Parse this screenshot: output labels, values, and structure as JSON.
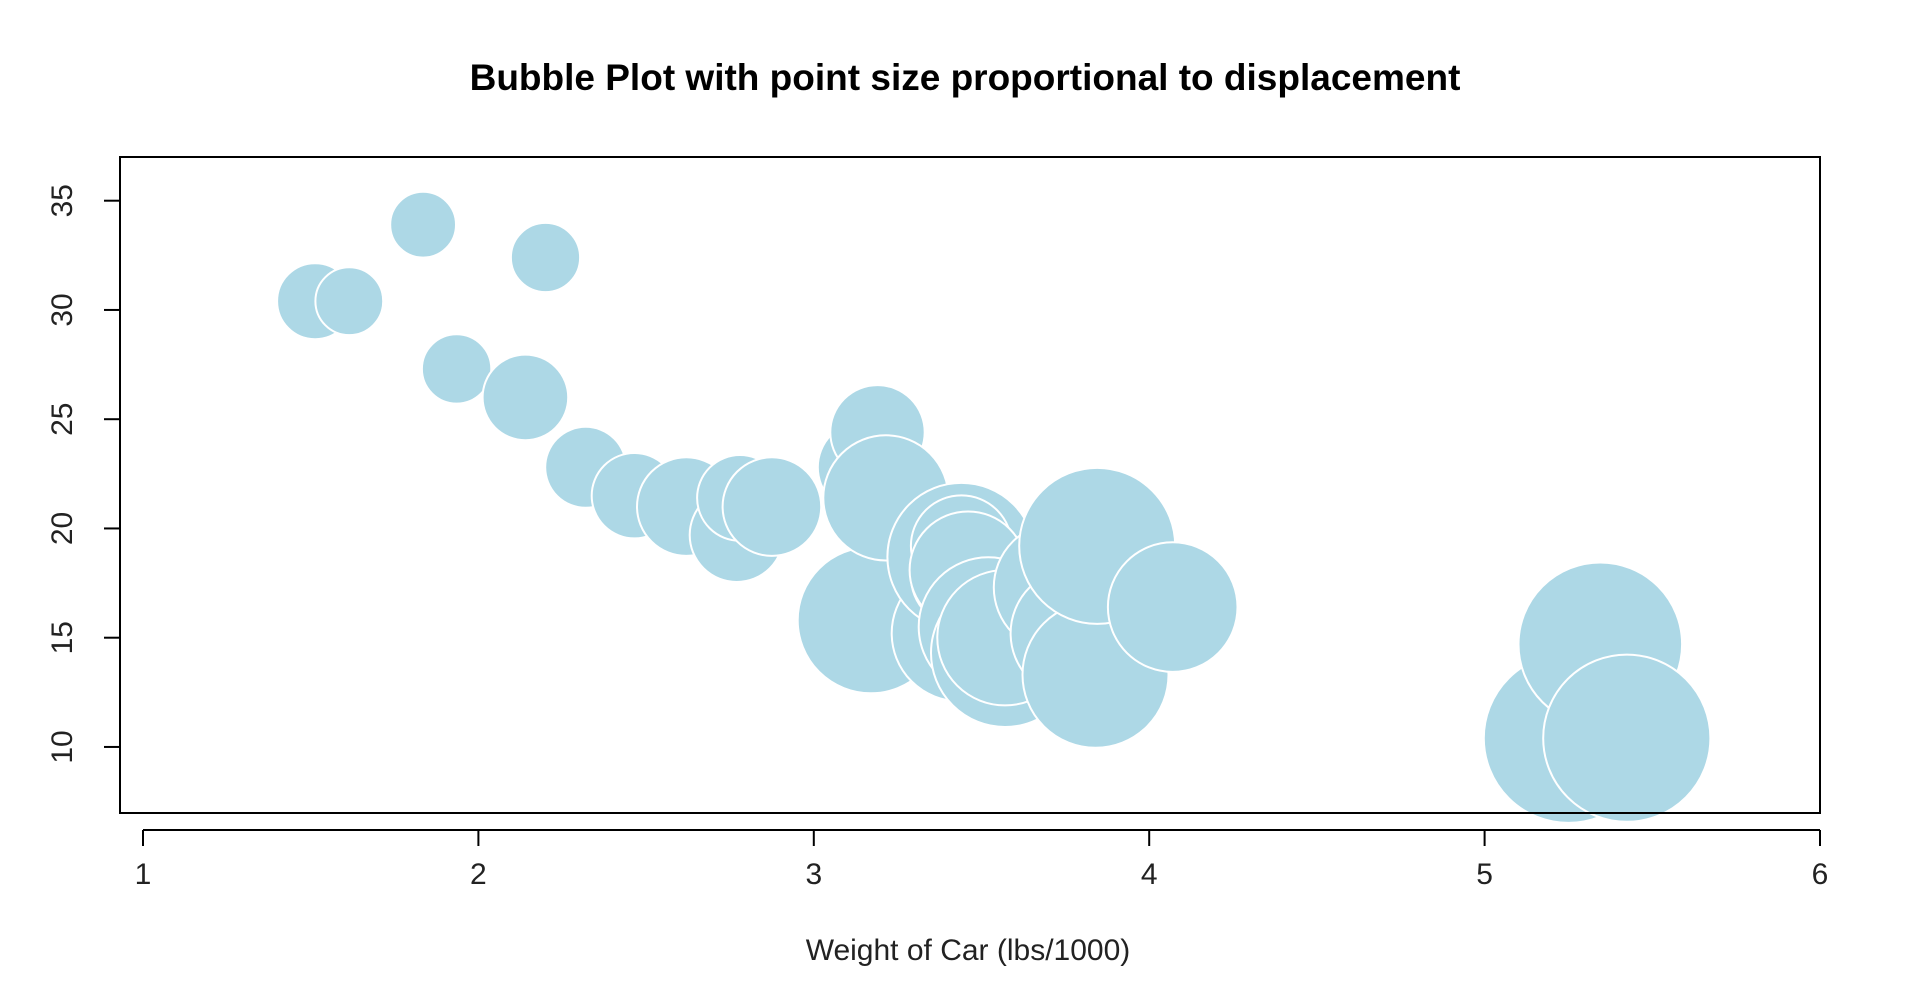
{
  "chart_data": {
    "type": "scatter",
    "title": "Bubble Plot with point size proportional to displacement",
    "xlabel": "Weight of Car (lbs/1000)",
    "ylabel": "",
    "xlim": [
      1,
      6
    ],
    "ylim": [
      7,
      37
    ],
    "xticks": [
      1,
      2,
      3,
      4,
      5,
      6
    ],
    "yticks": [
      10,
      15,
      20,
      25,
      30,
      35
    ],
    "grid": false,
    "legend": "none",
    "size_variable": "displacement",
    "colors": {
      "bubble_fill": "#ADD8E6",
      "bubble_stroke": "#FFFFFF",
      "frame": "#000000",
      "text": "#000000"
    },
    "points": [
      {
        "x": 1.513,
        "y": 30.4,
        "size": 95.1
      },
      {
        "x": 1.615,
        "y": 30.4,
        "size": 75.7
      },
      {
        "x": 1.835,
        "y": 33.9,
        "size": 71.1
      },
      {
        "x": 1.935,
        "y": 27.3,
        "size": 79.0
      },
      {
        "x": 2.14,
        "y": 26.0,
        "size": 120.3
      },
      {
        "x": 2.2,
        "y": 32.4,
        "size": 78.7
      },
      {
        "x": 2.32,
        "y": 22.8,
        "size": 108.0
      },
      {
        "x": 2.465,
        "y": 21.5,
        "size": 120.1
      },
      {
        "x": 2.62,
        "y": 21.0,
        "size": 160.0
      },
      {
        "x": 2.77,
        "y": 19.7,
        "size": 145.0
      },
      {
        "x": 2.78,
        "y": 21.4,
        "size": 121.0
      },
      {
        "x": 2.875,
        "y": 21.0,
        "size": 160.0
      },
      {
        "x": 3.15,
        "y": 22.8,
        "size": 140.8
      },
      {
        "x": 3.17,
        "y": 15.8,
        "size": 351.0
      },
      {
        "x": 3.19,
        "y": 24.4,
        "size": 146.7
      },
      {
        "x": 3.215,
        "y": 21.4,
        "size": 258.0
      },
      {
        "x": 3.435,
        "y": 15.2,
        "size": 304.0
      },
      {
        "x": 3.44,
        "y": 18.7,
        "size": 360.0
      },
      {
        "x": 3.44,
        "y": 19.2,
        "size": 167.6
      },
      {
        "x": 3.44,
        "y": 17.8,
        "size": 167.6
      },
      {
        "x": 3.46,
        "y": 18.1,
        "size": 225.0
      },
      {
        "x": 3.52,
        "y": 15.5,
        "size": 318.0
      },
      {
        "x": 3.57,
        "y": 14.3,
        "size": 360.0
      },
      {
        "x": 3.57,
        "y": 15.0,
        "size": 301.0
      },
      {
        "x": 3.73,
        "y": 17.3,
        "size": 275.8
      },
      {
        "x": 3.78,
        "y": 15.2,
        "size": 275.8
      },
      {
        "x": 3.84,
        "y": 13.3,
        "size": 350.0
      },
      {
        "x": 3.845,
        "y": 19.2,
        "size": 400.0
      },
      {
        "x": 4.07,
        "y": 16.4,
        "size": 275.8
      },
      {
        "x": 5.25,
        "y": 10.4,
        "size": 472.0
      },
      {
        "x": 5.345,
        "y": 14.7,
        "size": 440.0
      },
      {
        "x": 5.424,
        "y": 10.4,
        "size": 460.0
      }
    ]
  }
}
